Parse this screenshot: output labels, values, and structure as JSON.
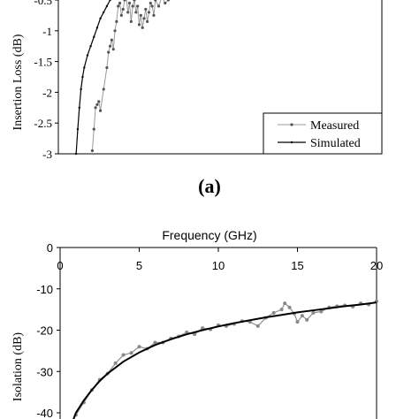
{
  "panel_a_label": "(a)",
  "chart_data": [
    {
      "type": "line",
      "ylabel": "Insertion Loss (dB)",
      "xlabel": "",
      "xlim": [
        0,
        20
      ],
      "ylim": [
        -3,
        -0.4
      ],
      "y_ticks": [
        -0.5,
        -1,
        -1.5,
        -2,
        -2.5,
        -3
      ],
      "legend_position": "bottom-right",
      "grid": false,
      "series": [
        {
          "name": "Measured",
          "x": [
            2.1,
            2.2,
            2.3,
            2.4,
            2.5,
            2.6,
            2.8,
            3.0,
            3.1,
            3.2,
            3.3,
            3.4,
            3.5,
            3.6,
            3.7,
            3.8,
            3.9,
            4.0,
            4.1,
            4.2,
            4.3,
            4.4,
            4.5,
            4.6,
            4.7,
            4.8,
            4.9,
            5.0,
            5.1,
            5.2,
            5.3,
            5.4,
            5.5,
            5.6,
            5.7,
            5.8,
            5.9,
            6.0,
            6.2,
            6.4,
            6.6,
            6.8,
            7.0
          ],
          "y": [
            -2.95,
            -2.6,
            -2.25,
            -2.2,
            -2.15,
            -2.3,
            -1.95,
            -1.6,
            -1.35,
            -1.25,
            -1.15,
            -1.3,
            -1.0,
            -0.85,
            -0.6,
            -0.55,
            -0.75,
            -0.65,
            -0.5,
            -0.45,
            -0.7,
            -0.55,
            -0.85,
            -0.6,
            -0.5,
            -0.7,
            -0.6,
            -0.9,
            -0.75,
            -0.95,
            -0.8,
            -0.65,
            -0.85,
            -0.7,
            -0.55,
            -0.6,
            -0.75,
            -0.5,
            -0.6,
            -0.45,
            -0.55,
            -0.5,
            -0.45
          ]
        },
        {
          "name": "Simulated",
          "x": [
            1.1,
            1.2,
            1.3,
            1.4,
            1.5,
            1.6,
            1.8,
            2.0,
            2.2,
            2.4,
            2.6,
            2.8,
            3.0,
            3.2,
            3.4,
            3.6
          ],
          "y": [
            -3.0,
            -2.6,
            -2.25,
            -1.95,
            -1.75,
            -1.6,
            -1.4,
            -1.25,
            -1.1,
            -0.95,
            -0.8,
            -0.7,
            -0.6,
            -0.5,
            -0.42,
            -0.38
          ]
        }
      ]
    },
    {
      "type": "line",
      "xlabel": "Frequency (GHz)",
      "ylabel": "Isolation (dB)",
      "xlim": [
        0,
        20
      ],
      "ylim": [
        -42,
        0
      ],
      "x_ticks": [
        0,
        5,
        10,
        15,
        20
      ],
      "y_ticks": [
        0,
        -10,
        -20,
        -30,
        -40
      ],
      "x_axis_position": "top",
      "grid": false,
      "series": [
        {
          "x": [
            1.0,
            1.5,
            2.0,
            2.5,
            3.0,
            3.5,
            4.0,
            4.5,
            5.0,
            5.5,
            6.0,
            6.5,
            7.0,
            7.5,
            8.0,
            8.5,
            9.0,
            9.5,
            10.0,
            10.5,
            11.0,
            11.5,
            12.0,
            12.5,
            13.0,
            13.5,
            14.0,
            14.2,
            14.5,
            14.8,
            15.0,
            15.3,
            15.6,
            16.0,
            16.5,
            17.0,
            17.5,
            18.0,
            18.5,
            19.0,
            19.5,
            20.0
          ],
          "y": [
            -40.5,
            -37.5,
            -34.5,
            -32.0,
            -30.5,
            -28.0,
            -26.0,
            -25.5,
            -24.0,
            -24.5,
            -23.0,
            -23.0,
            -22.0,
            -21.5,
            -20.5,
            -21.0,
            -19.5,
            -19.8,
            -18.8,
            -19.0,
            -18.5,
            -17.8,
            -18.0,
            -19.0,
            -17.0,
            -15.8,
            -15.0,
            -13.5,
            -14.5,
            -16.0,
            -18.0,
            -16.5,
            -17.5,
            -15.8,
            -15.5,
            -14.5,
            -14.2,
            -14.0,
            -14.3,
            -13.5,
            -13.8,
            -13.0
          ]
        },
        {
          "x": [
            0.8,
            1.0,
            1.5,
            2.0,
            2.5,
            3.0,
            4.0,
            5.0,
            6.0,
            7.0,
            8.0,
            9.0,
            10.0,
            11.0,
            12.0,
            13.0,
            14.0,
            15.0,
            16.0,
            17.0,
            18.0,
            19.0,
            20.0
          ],
          "y": [
            -42.0,
            -40.0,
            -37.0,
            -34.5,
            -32.3,
            -30.5,
            -27.6,
            -25.4,
            -23.6,
            -22.2,
            -21.0,
            -20.0,
            -19.1,
            -18.3,
            -17.6,
            -16.9,
            -16.3,
            -15.7,
            -15.2,
            -14.7,
            -14.2,
            -13.8,
            -13.3
          ]
        }
      ]
    }
  ]
}
